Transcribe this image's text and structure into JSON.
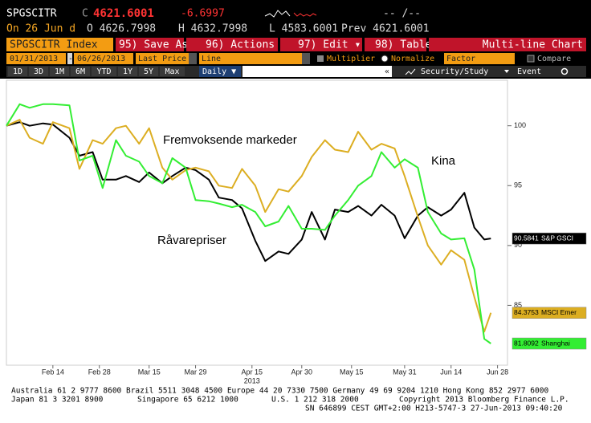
{
  "header": {
    "ticker": "SPGSCITR",
    "close_label": "C",
    "close": "4621.6001",
    "change": "-6.6997",
    "bid_ask": "-- /--",
    "date": "On 26 Jun d",
    "open": "O 4626.7998",
    "high": "H 4632.7998",
    "low": "L 4583.6001",
    "prev": "Prev 4621.6001"
  },
  "toolbar": {
    "security": "SPGSCITR Index",
    "buttons": [
      "95) Save As",
      "96) Actions ▾",
      "97) Edit ▾",
      "98) Table"
    ],
    "view": "Multi-line Chart",
    "start_date": "01/31/2013",
    "date_sep": "-",
    "end_date": "06/26/2013",
    "field": "Last Price",
    "style": "Line",
    "multiplier": "Multiplier",
    "normalize": "Normalize",
    "factor": "Factor",
    "compare": "Compare",
    "periods": [
      "1D",
      "3D",
      "1M",
      "6M",
      "YTD",
      "1Y",
      "5Y",
      "Max"
    ],
    "frequency": "Daily ▼",
    "collapse": "«",
    "security_study": "Security/Study",
    "event": "Event"
  },
  "chart_data": {
    "type": "line",
    "x": [
      "2013-01-31",
      "2013-02-04",
      "2013-02-07",
      "2013-02-11",
      "2013-02-14",
      "2013-02-19",
      "2013-02-22",
      "2013-02-26",
      "2013-03-01",
      "2013-03-05",
      "2013-03-08",
      "2013-03-12",
      "2013-03-15",
      "2013-03-19",
      "2013-03-22",
      "2013-03-26",
      "2013-03-29",
      "2013-04-02",
      "2013-04-05",
      "2013-04-09",
      "2013-04-12",
      "2013-04-16",
      "2013-04-19",
      "2013-04-23",
      "2013-04-26",
      "2013-04-30",
      "2013-05-03",
      "2013-05-07",
      "2013-05-10",
      "2013-05-14",
      "2013-05-17",
      "2013-05-21",
      "2013-05-24",
      "2013-05-28",
      "2013-05-31",
      "2013-06-04",
      "2013-06-07",
      "2013-06-11",
      "2013-06-14",
      "2013-06-18",
      "2013-06-21",
      "2013-06-24",
      "2013-06-26"
    ],
    "series": [
      {
        "name": "S&P GSCI",
        "color": "#000000",
        "label_text": "#ffffff",
        "values": [
          100,
          100.3,
          100,
          100.2,
          100.1,
          99,
          97.5,
          97.8,
          95.5,
          95.5,
          95.8,
          95.3,
          96.1,
          95.2,
          95.8,
          96.5,
          96.3,
          95.5,
          94,
          93.8,
          93.1,
          90.4,
          88.7,
          89.5,
          89.3,
          90.5,
          92.8,
          90.5,
          93,
          92.8,
          93.3,
          92.5,
          93.4,
          92.5,
          90.6,
          92.5,
          93.2,
          92.5,
          93,
          94.4,
          91.5,
          90.5,
          90.5841
        ]
      },
      {
        "name": "MSCI Emer",
        "color": "#dcae22",
        "label_text": "#000000",
        "values": [
          100,
          100.5,
          99,
          98.5,
          100.3,
          99.8,
          96.4,
          98.8,
          98.5,
          99.8,
          100,
          98.5,
          99.8,
          96.5,
          95.5,
          96.3,
          96.5,
          96.2,
          95,
          94.8,
          96.4,
          95,
          92.8,
          94.7,
          94.5,
          95.8,
          97.4,
          98.8,
          98,
          97.8,
          99.5,
          98,
          98.5,
          98.1,
          95.8,
          92.4,
          90,
          88.4,
          89.6,
          88.8,
          85.7,
          82.8,
          84.3753
        ]
      },
      {
        "name": "Shanghai",
        "color": "#33ee33",
        "label_text": "#000000",
        "values": [
          100,
          101.8,
          101.5,
          101.8,
          101.8,
          101.7,
          97.1,
          97.5,
          94.8,
          98.8,
          97.5,
          97,
          95.8,
          95.2,
          97.3,
          96.5,
          93.8,
          93.7,
          93.5,
          93.2,
          93.4,
          92.8,
          91.6,
          92,
          93.3,
          91.4,
          91.4,
          91.3,
          92.5,
          93.8,
          95,
          95.8,
          97.8,
          96.5,
          97.2,
          96.5,
          92.8,
          91,
          90.5,
          90.6,
          88,
          82.2,
          81.8092
        ]
      }
    ],
    "xlim": [
      "2013-01-31",
      "2013-07-01"
    ],
    "xticks": [
      {
        "value": "2013-02-14",
        "label": "Feb 14"
      },
      {
        "value": "2013-02-28",
        "label": "Feb 28"
      },
      {
        "value": "2013-03-15",
        "label": "Mar 15"
      },
      {
        "value": "2013-03-29",
        "label": "Mar 29"
      },
      {
        "value": "2013-04-15",
        "label": "Apr 15"
      },
      {
        "value": "2013-04-30",
        "label": "Apr 30"
      },
      {
        "value": "2013-05-15",
        "label": "May 15"
      },
      {
        "value": "2013-05-31",
        "label": "May 31"
      },
      {
        "value": "2013-06-14",
        "label": "Jun 14"
      },
      {
        "value": "2013-06-28",
        "label": "Jun 28"
      }
    ],
    "xlabel": "2013",
    "ylim": [
      80,
      103.8
    ],
    "yticks": [
      85,
      90,
      95,
      100
    ],
    "grid": false,
    "annotations": [
      "Fremvoksende markeder",
      "Kina",
      "Råvarepriser"
    ]
  },
  "footer": {
    "line1": "Australia 61 2 9777 8600 Brazil 5511 3048 4500 Europe 44 20 7330 7500 Germany 49 69 9204 1210 Hong Kong 852 2977 6000",
    "line2": [
      "Japan 81 3 3201 8900",
      "Singapore 65 6212 1000",
      "U.S. 1 212 318 2000",
      "Copyright 2013 Bloomberg Finance L.P."
    ],
    "line3": "SN 646899 CEST GMT+2:00 H213-5747-3 27-Jun-2013 09:40:20"
  }
}
